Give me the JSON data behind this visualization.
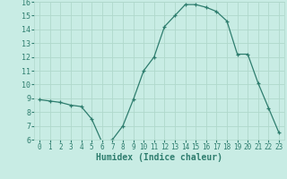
{
  "x": [
    0,
    1,
    2,
    3,
    4,
    5,
    6,
    7,
    8,
    9,
    10,
    11,
    12,
    13,
    14,
    15,
    16,
    17,
    18,
    19,
    20,
    21,
    22,
    23
  ],
  "y": [
    8.9,
    8.8,
    8.7,
    8.5,
    8.4,
    7.5,
    5.8,
    6.0,
    7.0,
    8.9,
    11.0,
    12.0,
    14.2,
    15.0,
    15.8,
    15.8,
    15.6,
    15.3,
    14.6,
    12.2,
    12.2,
    10.1,
    8.3,
    6.5
  ],
  "xlabel": "Humidex (Indice chaleur)",
  "ylim": [
    6,
    16
  ],
  "xlim": [
    -0.5,
    23.5
  ],
  "yticks": [
    6,
    7,
    8,
    9,
    10,
    11,
    12,
    13,
    14,
    15,
    16
  ],
  "xticks": [
    0,
    1,
    2,
    3,
    4,
    5,
    6,
    7,
    8,
    9,
    10,
    11,
    12,
    13,
    14,
    15,
    16,
    17,
    18,
    19,
    20,
    21,
    22,
    23
  ],
  "line_color": "#2e7d6e",
  "marker": "+",
  "bg_color": "#c8ece4",
  "grid_color": "#b0d8cc",
  "tick_color": "#2e7d6e",
  "label_color": "#2e7d6e"
}
